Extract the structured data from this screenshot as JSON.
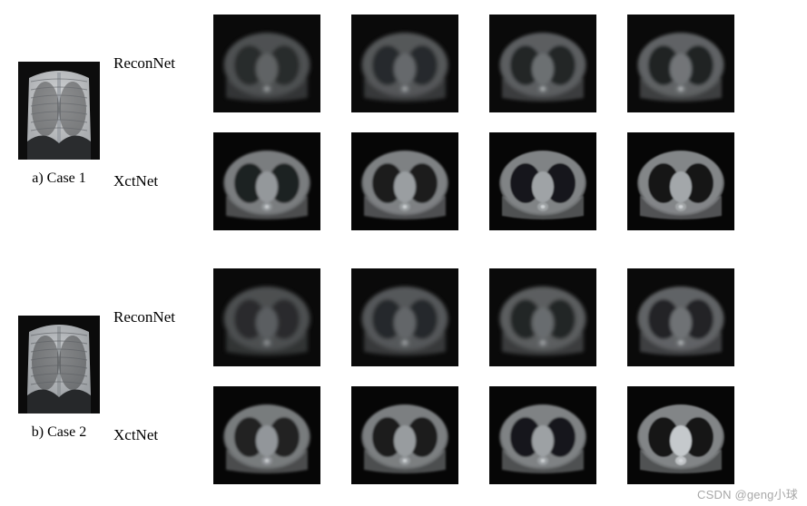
{
  "figure": {
    "background_color": "#ffffff",
    "font_family": "Times New Roman",
    "label_fontsize": 17,
    "caption_fontsize": 16,
    "image_frame": {
      "thumb_w": 90,
      "thumb_h": 108,
      "ct_w": 118,
      "ct_h": 108,
      "col_gap": 34,
      "row_gap": 22
    },
    "cases": [
      {
        "caption": "a) Case 1",
        "input_image": {
          "type": "chest-xray",
          "bg": "#0d0d0d",
          "lung_fill": "#b9bcbf",
          "lung_highlight": "#e3e5e7",
          "rib_stroke": "#666a6e",
          "spine_stroke": "#9a9fa4",
          "diaphragm_fill": "#2a2c2e"
        },
        "rows": [
          {
            "method_label": "ReconNet",
            "slices": [
              {
                "bg": "#0a0a0a",
                "body": "#5a5d5f",
                "lung": "#2f3233",
                "heart": "#6f7375",
                "blur": 2.2,
                "contrast": 0.85
              },
              {
                "bg": "#0a0a0a",
                "body": "#606365",
                "lung": "#2b2e30",
                "heart": "#73777a",
                "blur": 2.0,
                "contrast": 0.88
              },
              {
                "bg": "#0a0a0a",
                "body": "#65686a",
                "lung": "#27292b",
                "heart": "#777b7e",
                "blur": 1.9,
                "contrast": 0.9
              },
              {
                "bg": "#0a0a0a",
                "body": "#686b6d",
                "lung": "#242628",
                "heart": "#7b7f82",
                "blur": 1.8,
                "contrast": 0.92
              }
            ]
          },
          {
            "method_label": "XctNet",
            "slices": [
              {
                "bg": "#060606",
                "body": "#7a7d7f",
                "lung": "#1f2122",
                "heart": "#94989b",
                "blur": 1.2,
                "contrast": 1.05
              },
              {
                "bg": "#060606",
                "body": "#7e8183",
                "lung": "#1a1c1d",
                "heart": "#9a9ea1",
                "blur": 1.0,
                "contrast": 1.08
              },
              {
                "bg": "#060606",
                "body": "#808385",
                "lung": "#16181a",
                "heart": "#9fa3a6",
                "blur": 0.9,
                "contrast": 1.1
              },
              {
                "bg": "#060606",
                "body": "#838688",
                "lung": "#141618",
                "heart": "#a3a7aa",
                "blur": 0.8,
                "contrast": 1.12
              }
            ]
          }
        ]
      },
      {
        "caption": "b) Case 2",
        "input_image": {
          "type": "chest-xray",
          "bg": "#0b0b0b",
          "lung_fill": "#a9adb1",
          "lung_highlight": "#d8dbde",
          "rib_stroke": "#5f6367",
          "spine_stroke": "#8f9498",
          "diaphragm_fill": "#26282a"
        },
        "rows": [
          {
            "method_label": "ReconNet",
            "slices": [
              {
                "bg": "#0a0a0a",
                "body": "#5c5f61",
                "lung": "#303334",
                "heart": "#6d7174",
                "blur": 2.3,
                "contrast": 0.82
              },
              {
                "bg": "#0a0a0a",
                "body": "#626567",
                "lung": "#2c2f31",
                "heart": "#727679",
                "blur": 2.1,
                "contrast": 0.86
              },
              {
                "bg": "#0a0a0a",
                "body": "#676a6c",
                "lung": "#282a2c",
                "heart": "#767a7d",
                "blur": 2.0,
                "contrast": 0.88
              },
              {
                "bg": "#0a0a0a",
                "body": "#6a6d6f",
                "lung": "#252729",
                "heart": "#7a7e81",
                "blur": 1.9,
                "contrast": 0.9
              }
            ]
          },
          {
            "method_label": "XctNet",
            "slices": [
              {
                "bg": "#060606",
                "body": "#787b7d",
                "lung": "#202223",
                "heart": "#92969a",
                "blur": 1.3,
                "contrast": 1.02
              },
              {
                "bg": "#060606",
                "body": "#7c7f81",
                "lung": "#1b1d1e",
                "heart": "#989c9f",
                "blur": 1.1,
                "contrast": 1.06
              },
              {
                "bg": "#060606",
                "body": "#7f8284",
                "lung": "#17191b",
                "heart": "#9da1a4",
                "blur": 1.0,
                "contrast": 1.08
              },
              {
                "bg": "#060606",
                "body": "#828587",
                "lung": "#131517",
                "heart": "#c5c9cc",
                "blur": 0.8,
                "contrast": 1.15
              }
            ]
          }
        ]
      }
    ]
  },
  "watermark": {
    "text": "CSDN @geng小球",
    "color": "rgba(120,120,120,0.65)",
    "fontsize": 13
  }
}
